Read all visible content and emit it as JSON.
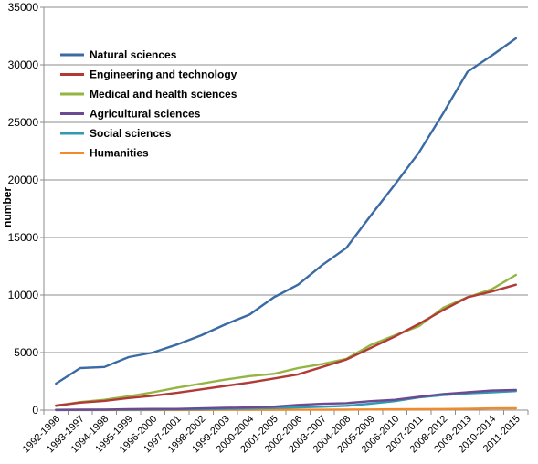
{
  "chart_data": {
    "type": "line",
    "title": "",
    "xlabel": "",
    "ylabel": "number",
    "ylim": [
      0,
      35000
    ],
    "yticks": [
      0,
      5000,
      10000,
      15000,
      20000,
      25000,
      30000,
      35000
    ],
    "grid": "horizontal",
    "legend_position": "top-left",
    "categories": [
      "1992-1996",
      "1993-1997",
      "1994-1998",
      "1995-1999",
      "1996-2000",
      "1997-2001",
      "1998-2002",
      "1999-2003",
      "2000-2004",
      "2001-2005",
      "2002-2006",
      "2003-2007",
      "2004-2008",
      "2005-2009",
      "2006-2010",
      "2007-2011",
      "2008-2012",
      "2009-2013",
      "2010-2014",
      "2011-2015"
    ],
    "series": [
      {
        "name": "Natural sciences",
        "color": "#3B6BA5",
        "values": [
          2300,
          3650,
          3750,
          4600,
          5000,
          5700,
          6500,
          7450,
          8300,
          9800,
          10900,
          12600,
          14100,
          16900,
          19600,
          22400,
          25800,
          29400,
          30800,
          32300
        ]
      },
      {
        "name": "Engineering and technology",
        "color": "#B23A36",
        "values": [
          400,
          650,
          800,
          1050,
          1250,
          1500,
          1800,
          2100,
          2400,
          2750,
          3100,
          3750,
          4400,
          5400,
          6400,
          7500,
          8700,
          9800,
          10300,
          10900
        ]
      },
      {
        "name": "Medical and health sciences",
        "color": "#93B541",
        "values": [
          350,
          700,
          900,
          1200,
          1550,
          1950,
          2300,
          2650,
          2950,
          3150,
          3650,
          4000,
          4450,
          5650,
          6500,
          7300,
          8900,
          9800,
          10500,
          11750
        ]
      },
      {
        "name": "Agricultural sciences",
        "color": "#6B4A92",
        "values": [
          20,
          40,
          50,
          80,
          100,
          100,
          150,
          200,
          230,
          300,
          450,
          550,
          600,
          780,
          900,
          1150,
          1400,
          1550,
          1700,
          1750
        ]
      },
      {
        "name": "Social sciences",
        "color": "#2F9AB0",
        "values": [
          10,
          20,
          30,
          40,
          50,
          60,
          80,
          110,
          140,
          180,
          230,
          290,
          370,
          560,
          780,
          1100,
          1300,
          1450,
          1550,
          1650
        ]
      },
      {
        "name": "Humanities",
        "color": "#F08A2B",
        "values": [
          5,
          5,
          5,
          10,
          10,
          10,
          15,
          20,
          20,
          25,
          30,
          35,
          40,
          55,
          70,
          80,
          95,
          110,
          150,
          160
        ]
      }
    ]
  }
}
